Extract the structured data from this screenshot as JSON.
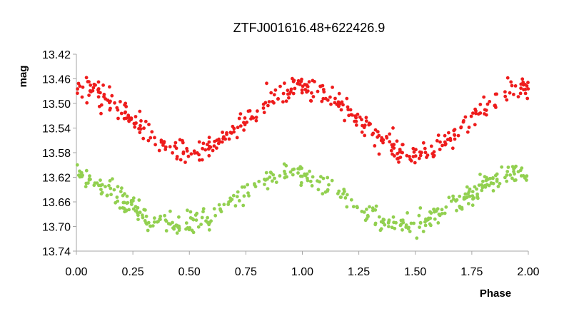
{
  "chart_data": {
    "type": "scatter",
    "title": "ZTFJ001616.48+622426.9",
    "xlabel": "Phase",
    "ylabel": "mag",
    "xlim": [
      0.0,
      2.0
    ],
    "ylim": [
      13.74,
      13.42
    ],
    "y_inverted": true,
    "grid": false,
    "xticks": [
      "0.00",
      "0.25",
      "0.50",
      "0.75",
      "1.00",
      "1.25",
      "1.50",
      "1.75",
      "2.00"
    ],
    "yticks": [
      "13.42",
      "13.46",
      "13.50",
      "13.54",
      "13.58",
      "13.62",
      "13.66",
      "13.70",
      "13.74"
    ],
    "series": [
      {
        "color": "#ee1c1c",
        "marker": "circle",
        "model": {
          "description": "phase-folded light curve repeated over two cycles",
          "min_phase": 0.0,
          "bright_mag": 13.475,
          "faint_mag": 13.58,
          "faint_phases": [
            0.5,
            1.5
          ],
          "scatter_mag": 0.009,
          "points_per_cycle": 200
        }
      },
      {
        "color": "#92d050",
        "marker": "circle",
        "model": {
          "description": "phase-folded light curve repeated over two cycles",
          "min_phase": 0.0,
          "bright_mag": 13.615,
          "faint_mag": 13.7,
          "faint_phases": [
            0.45,
            1.45
          ],
          "scatter_mag": 0.009,
          "points_per_cycle": 200
        }
      }
    ]
  }
}
